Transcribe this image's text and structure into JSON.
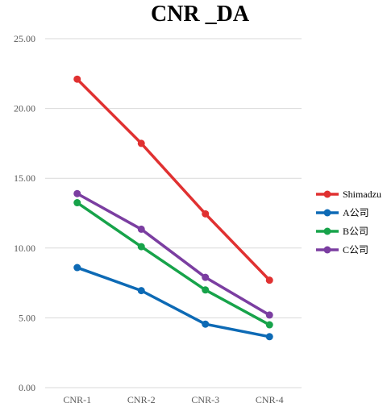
{
  "chart_data": {
    "type": "line",
    "title": "CNR _DA",
    "xlabel": "",
    "ylabel": "",
    "categories": [
      "CNR-1",
      "CNR-2",
      "CNR-3",
      "CNR-4"
    ],
    "ylim": [
      0,
      25
    ],
    "y_ticks": [
      "0.00",
      "5.00",
      "10.00",
      "15.00",
      "20.00",
      "25.00"
    ],
    "grid": true,
    "legend_position": "right",
    "series": [
      {
        "name": "Shimadzu",
        "color": "#e03131",
        "values": [
          22.1,
          17.5,
          12.45,
          7.7
        ]
      },
      {
        "name": "A公司",
        "color": "#0d6ab5",
        "values": [
          8.6,
          6.95,
          4.55,
          3.65
        ]
      },
      {
        "name": "B公司",
        "color": "#17a34a",
        "values": [
          13.25,
          10.1,
          7.0,
          4.5
        ]
      },
      {
        "name": "C公司",
        "color": "#7b3ea1",
        "values": [
          13.9,
          11.35,
          7.9,
          5.2
        ]
      }
    ]
  }
}
